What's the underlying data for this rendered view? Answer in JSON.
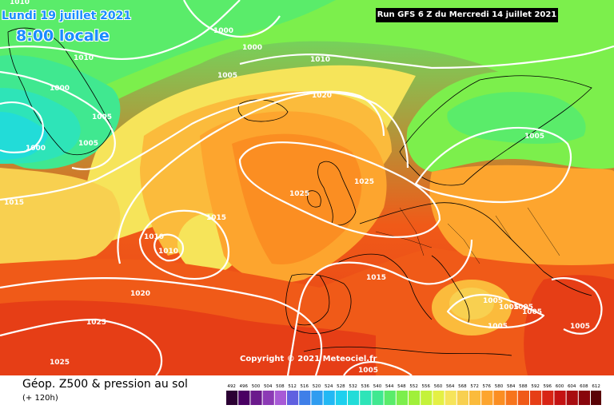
{
  "header": {
    "valid_date": "Lundi 19 juillet 2021",
    "valid_time": "8:00 locale",
    "run_info": "Run GFS 6 Z du Mercredi 14 juillet 2021"
  },
  "copyright": "Copyright © 2021 Meteociel.fr",
  "footer": {
    "product_title": "Géop. Z500 & pression au sol",
    "forecast_hour": "(+ 120h)"
  },
  "color_scale": {
    "values": [
      "492",
      "496",
      "500",
      "504",
      "508",
      "512",
      "516",
      "520",
      "524",
      "528",
      "532",
      "536",
      "540",
      "544",
      "548",
      "552",
      "556",
      "560",
      "564",
      "568",
      "572",
      "576",
      "580",
      "584",
      "588",
      "592",
      "596",
      "600",
      "604",
      "608",
      "612"
    ],
    "colors": [
      "#2b0033",
      "#4a0063",
      "#6b1a8c",
      "#8c3ab5",
      "#a85ad6",
      "#6060e0",
      "#3f7fe8",
      "#2f9cf0",
      "#22b8f4",
      "#1ed0ee",
      "#22dcd8",
      "#2ee4b8",
      "#40e890",
      "#5aec6a",
      "#7cef4c",
      "#a0f03a",
      "#c4f23a",
      "#e4f044",
      "#f6e45a",
      "#f8d050",
      "#fbbb3c",
      "#fda52e",
      "#fb8e22",
      "#f7741c",
      "#f05a18",
      "#e63e16",
      "#d82414",
      "#c41212",
      "#a80c10",
      "#88060c",
      "#5a0206"
    ]
  },
  "isobars": {
    "labels": [
      "1010",
      "1000",
      "1000",
      "1010",
      "1005",
      "1010",
      "1000",
      "1005",
      "1000",
      "1005",
      "1015",
      "1020",
      "1025",
      "1025",
      "1010",
      "1010",
      "1015",
      "1020",
      "1015",
      "1025",
      "1025",
      "1005",
      "1005",
      "1005",
      "1005",
      "1005",
      "1005",
      "1005",
      "1005"
    ]
  }
}
